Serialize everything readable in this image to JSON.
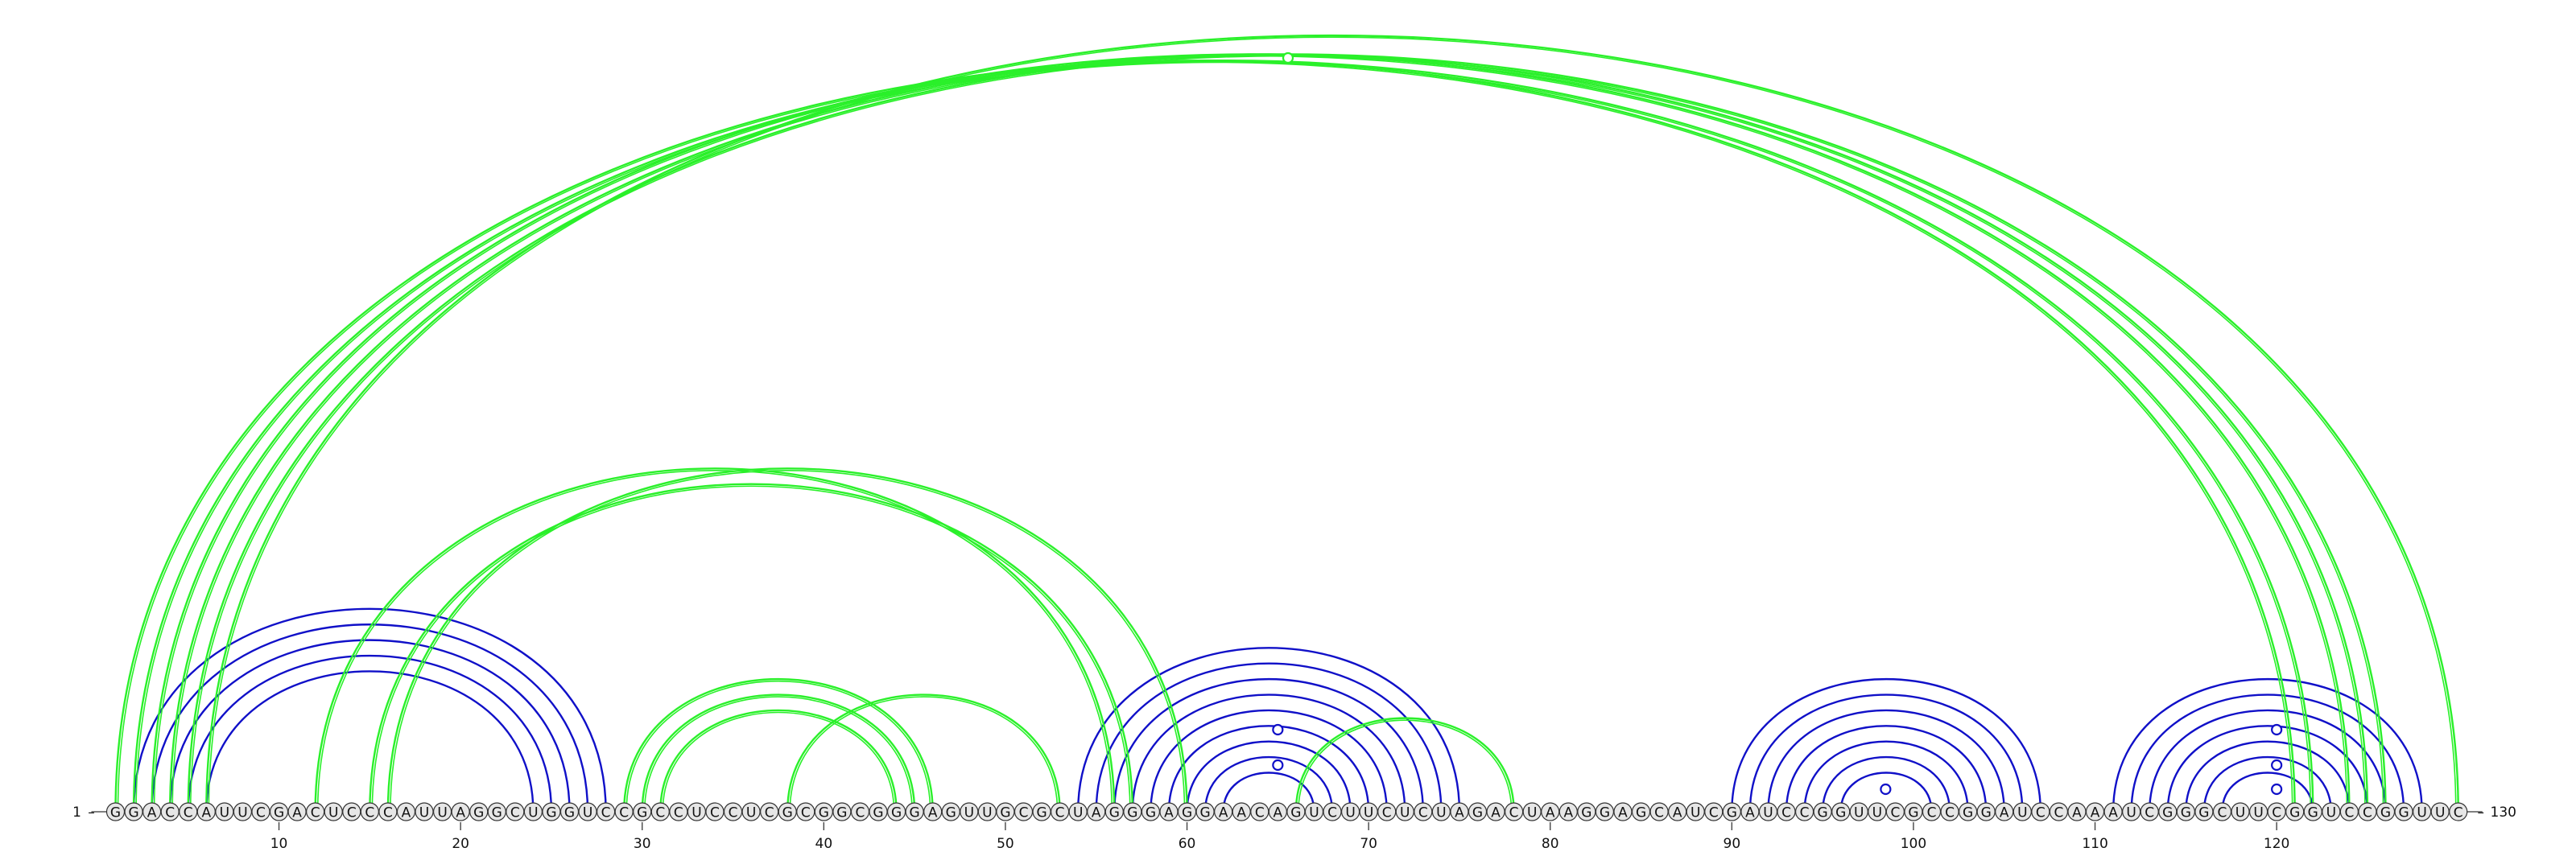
{
  "sequence": {
    "start_label": "1",
    "end_label": "130",
    "bases": "GGACCAUUCGACUCCCAUUAGGCUGGUCCGCCUCCUCGCGGCGGGAGUUGCGCUAGGGAGGAACAGUCUUCUCUAGACUAAGGAGCAUCGAUCCGGUUCGCCGGAUCCAAAUCGGGCUUCGGUCCGGUUC",
    "ticks": [
      10,
      20,
      30,
      40,
      50,
      60,
      70,
      80,
      90,
      100,
      110,
      120
    ]
  },
  "colors": {
    "blue": "#1010c8",
    "green": "#2af02a",
    "node_fill": "#e6e6e6",
    "node_stroke": "#333333",
    "text": "#111111"
  },
  "arc_groups": {
    "blue_below_baseline_view": [
      {
        "i": 2,
        "j": 28
      },
      {
        "i": 3,
        "j": 27
      },
      {
        "i": 4,
        "j": 26
      },
      {
        "i": 5,
        "j": 25
      },
      {
        "i": 6,
        "j": 24
      },
      {
        "i": 54,
        "j": 75
      },
      {
        "i": 55,
        "j": 74
      },
      {
        "i": 56,
        "j": 73
      },
      {
        "i": 57,
        "j": 72
      },
      {
        "i": 58,
        "j": 71
      },
      {
        "i": 59,
        "j": 70
      },
      {
        "i": 60,
        "j": 69
      },
      {
        "i": 61,
        "j": 68
      },
      {
        "i": 62,
        "j": 67
      },
      {
        "i": 90,
        "j": 107
      },
      {
        "i": 91,
        "j": 106
      },
      {
        "i": 92,
        "j": 105
      },
      {
        "i": 93,
        "j": 104
      },
      {
        "i": 94,
        "j": 103
      },
      {
        "i": 95,
        "j": 102
      },
      {
        "i": 96,
        "j": 101
      },
      {
        "i": 111,
        "j": 128
      },
      {
        "i": 112,
        "j": 127
      },
      {
        "i": 113,
        "j": 126
      },
      {
        "i": 114,
        "j": 125
      },
      {
        "i": 115,
        "j": 124
      },
      {
        "i": 116,
        "j": 123
      },
      {
        "i": 117,
        "j": 122
      }
    ],
    "green": [
      {
        "i": 1,
        "j": 121
      },
      {
        "i": 2,
        "j": 122
      },
      {
        "i": 3,
        "j": 124
      },
      {
        "i": 4,
        "j": 125
      },
      {
        "i": 5,
        "j": 126
      },
      {
        "i": 6,
        "j": 130
      },
      {
        "i": 12,
        "j": 56
      },
      {
        "i": 15,
        "j": 57
      },
      {
        "i": 16,
        "j": 60
      },
      {
        "i": 29,
        "j": 46
      },
      {
        "i": 30,
        "j": 45
      },
      {
        "i": 31,
        "j": 44
      },
      {
        "i": 38,
        "j": 53
      },
      {
        "i": 66,
        "j": 78
      }
    ]
  },
  "loop_markers": [
    {
      "position": 65,
      "level": 1
    },
    {
      "position": 65,
      "level": 2
    },
    {
      "position": 99,
      "level": 0
    },
    {
      "position": 120,
      "level": 0
    },
    {
      "position": 120,
      "level": 1
    },
    {
      "position": 120,
      "level": 2
    },
    {
      "position": 65,
      "level": 99
    }
  ]
}
